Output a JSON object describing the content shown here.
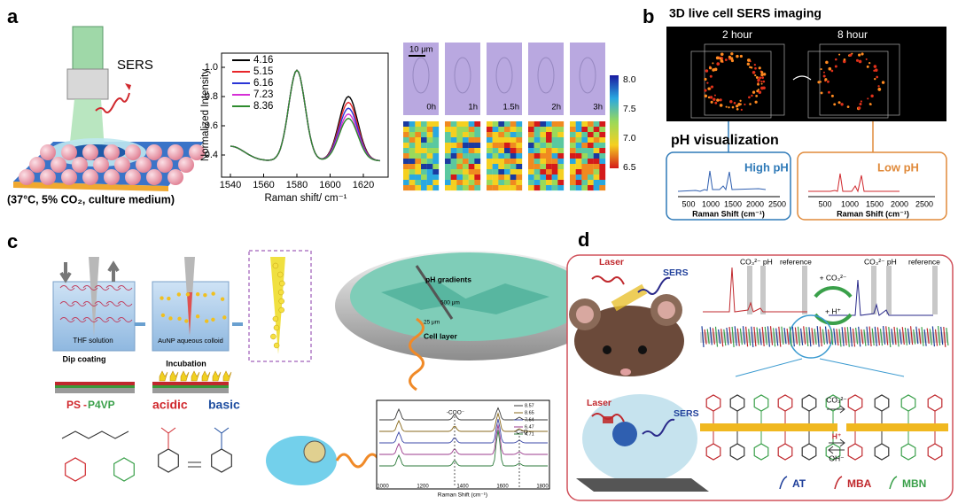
{
  "panel_a": {
    "label": "a",
    "sers": "SERS",
    "condition": "(37°C, 5% CO₂, culture medium)",
    "chart": {
      "y_label": "Normalized Intensity",
      "x_label": "Raman shift/ cm⁻¹",
      "yticks": [
        "1.0",
        "0.8",
        "0.6",
        "0.4"
      ],
      "xticks": [
        "1540",
        "1560",
        "1580",
        "1600",
        "1620"
      ],
      "legend": [
        {
          "name": "4.16",
          "color": "#000000"
        },
        {
          "name": "5.15",
          "color": "#e8262a"
        },
        {
          "name": "6.16",
          "color": "#2a35d6"
        },
        {
          "name": "7.23",
          "color": "#d62fd6"
        },
        {
          "name": "8.36",
          "color": "#2e8b2e"
        }
      ]
    },
    "scale_bar": "10 μm",
    "times": [
      "0h",
      "1h",
      "1.5h",
      "2h",
      "3h"
    ],
    "colorbar": [
      "8.0",
      "7.5",
      "7.0",
      "6.5"
    ]
  },
  "panel_b": {
    "label": "b",
    "title": "3D live cell SERS imaging",
    "time_1": "2 hour",
    "time_2": "8 hour",
    "subtitle": "pH visualization",
    "high": "High pH",
    "low": "Low pH",
    "xticks": [
      "500",
      "1000",
      "1500",
      "2000",
      "2500"
    ],
    "x_label": "Raman Shift (cm⁻¹)"
  },
  "panel_c": {
    "label": "c",
    "thf": "THF solution",
    "dip": "Dip coating",
    "colloid": "AuNP aqueous colloid",
    "incubation": "Incubation",
    "polymer_ps": "PS",
    "polymer_dash": "-",
    "polymer_p4vp": "P4VP",
    "acidic": "acidic",
    "basic": "basic",
    "gradients": "pH gradients",
    "depth_1": "500 μm",
    "depth_2": "25 μm",
    "cell_layer": "Cell layer",
    "spectrum": {
      "legend": [
        "8.57",
        "8.65",
        "7.64",
        "6.47",
        "4.71"
      ],
      "colors": [
        "#3a3a3a",
        "#8a6a1c",
        "#3d49a8",
        "#9b3b8c",
        "#2d7a3b"
      ],
      "coo": "-COO⁻",
      "co": "-C=O",
      "xticks": [
        "1000",
        "1200",
        "1400",
        "1600",
        "1800"
      ],
      "x_label": "Raman Shift (cm⁻¹)"
    }
  },
  "panel_d": {
    "label": "d",
    "laser_1": "Laser",
    "sers_1": "SERS",
    "laser_2": "Laser",
    "sers_2": "SERS",
    "peaks_1": "CO₃²⁻ pH",
    "reference_1": "reference",
    "peaks_2": "CO₃²⁻ pH",
    "reference_2": "reference",
    "add_co3": "+ CO₃²⁻",
    "add_h": "+ H⁺",
    "arrow_co3": "CO₃²⁻",
    "arrow_h": "H⁺",
    "arrow_oh": "OH⁻",
    "legend": [
      {
        "name": "AT",
        "color": "#1f3f9a"
      },
      {
        "name": "MBA",
        "color": "#c0282d"
      },
      {
        "name": "MBN",
        "color": "#3aa04a"
      }
    ]
  }
}
